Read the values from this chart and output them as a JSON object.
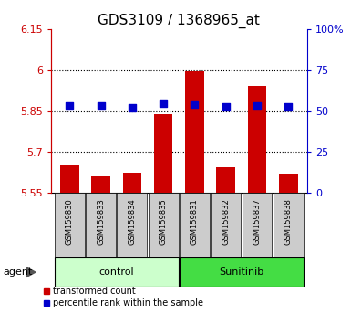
{
  "title": "GDS3109 / 1368965_at",
  "samples": [
    "GSM159830",
    "GSM159833",
    "GSM159834",
    "GSM159835",
    "GSM159831",
    "GSM159832",
    "GSM159837",
    "GSM159838"
  ],
  "groups": [
    "control",
    "control",
    "control",
    "control",
    "Sunitinib",
    "Sunitinib",
    "Sunitinib",
    "Sunitinib"
  ],
  "red_values": [
    5.655,
    5.615,
    5.625,
    5.84,
    5.995,
    5.645,
    5.94,
    5.62
  ],
  "blue_values": [
    5.87,
    5.87,
    5.865,
    5.878,
    5.875,
    5.868,
    5.87,
    5.867
  ],
  "ylim_left": [
    5.55,
    6.15
  ],
  "yticks_left": [
    5.55,
    5.7,
    5.85,
    6.0,
    6.15
  ],
  "ytick_labels_left": [
    "5.55",
    "5.7",
    "5.85",
    "6",
    "6.15"
  ],
  "yticks_right": [
    0,
    25,
    50,
    75,
    100
  ],
  "ytick_labels_right": [
    "0",
    "25",
    "50",
    "75",
    "100%"
  ],
  "bar_bottom": 5.55,
  "bar_width": 0.6,
  "red_color": "#cc0000",
  "blue_color": "#0000cc",
  "control_bg": "#ccffcc",
  "sunitinib_bg": "#44dd44",
  "xticklabel_bg": "#cccccc",
  "grid_color": "black",
  "legend_red_label": "transformed count",
  "legend_blue_label": "percentile rank within the sample",
  "agent_label": "agent",
  "control_label": "control",
  "sunitinib_label": "Sunitinib",
  "left_axis_color": "#cc0000",
  "right_axis_color": "#0000cc",
  "figsize": [
    3.85,
    3.54
  ],
  "dpi": 100
}
